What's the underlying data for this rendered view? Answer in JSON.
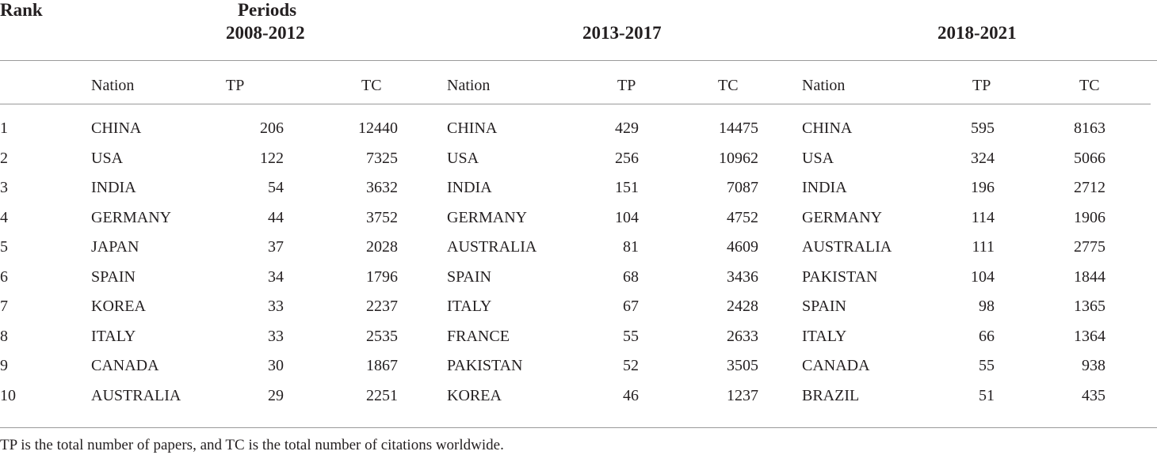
{
  "header": {
    "rank": "Rank",
    "periods": "Periods",
    "period1": "2008-2012",
    "period2": "2013-2017",
    "period3": "2018-2021"
  },
  "subheader": {
    "nation": "Nation",
    "tp": "TP",
    "tc": "TC"
  },
  "rows": [
    {
      "rank": "1",
      "p1": {
        "nation": "CHINA",
        "tp": "206",
        "tc": "12440"
      },
      "p2": {
        "nation": "CHINA",
        "tp": "429",
        "tc": "14475"
      },
      "p3": {
        "nation": "CHINA",
        "tp": "595",
        "tc": "8163"
      }
    },
    {
      "rank": "2",
      "p1": {
        "nation": "USA",
        "tp": "122",
        "tc": "7325"
      },
      "p2": {
        "nation": "USA",
        "tp": "256",
        "tc": "10962"
      },
      "p3": {
        "nation": "USA",
        "tp": "324",
        "tc": "5066"
      }
    },
    {
      "rank": "3",
      "p1": {
        "nation": "INDIA",
        "tp": "54",
        "tc": "3632"
      },
      "p2": {
        "nation": "INDIA",
        "tp": "151",
        "tc": "7087"
      },
      "p3": {
        "nation": "INDIA",
        "tp": "196",
        "tc": "2712"
      }
    },
    {
      "rank": "4",
      "p1": {
        "nation": "GERMANY",
        "tp": "44",
        "tc": "3752"
      },
      "p2": {
        "nation": "GERMANY",
        "tp": "104",
        "tc": "4752"
      },
      "p3": {
        "nation": "GERMANY",
        "tp": "114",
        "tc": "1906"
      }
    },
    {
      "rank": "5",
      "p1": {
        "nation": "JAPAN",
        "tp": "37",
        "tc": "2028"
      },
      "p2": {
        "nation": "AUSTRALIA",
        "tp": "81",
        "tc": "4609"
      },
      "p3": {
        "nation": "AUSTRALIA",
        "tp": "111",
        "tc": "2775"
      }
    },
    {
      "rank": "6",
      "p1": {
        "nation": "SPAIN",
        "tp": "34",
        "tc": "1796"
      },
      "p2": {
        "nation": "SPAIN",
        "tp": "68",
        "tc": "3436"
      },
      "p3": {
        "nation": "PAKISTAN",
        "tp": "104",
        "tc": "1844"
      }
    },
    {
      "rank": "7",
      "p1": {
        "nation": "KOREA",
        "tp": "33",
        "tc": "2237"
      },
      "p2": {
        "nation": "ITALY",
        "tp": "67",
        "tc": "2428"
      },
      "p3": {
        "nation": "SPAIN",
        "tp": "98",
        "tc": "1365"
      }
    },
    {
      "rank": "8",
      "p1": {
        "nation": "ITALY",
        "tp": "33",
        "tc": "2535"
      },
      "p2": {
        "nation": "FRANCE",
        "tp": "55",
        "tc": "2633"
      },
      "p3": {
        "nation": "ITALY",
        "tp": "66",
        "tc": "1364"
      }
    },
    {
      "rank": "9",
      "p1": {
        "nation": "CANADA",
        "tp": "30",
        "tc": "1867"
      },
      "p2": {
        "nation": "PAKISTAN",
        "tp": "52",
        "tc": "3505"
      },
      "p3": {
        "nation": "CANADA",
        "tp": "55",
        "tc": "938"
      }
    },
    {
      "rank": "10",
      "p1": {
        "nation": "AUSTRALIA",
        "tp": "29",
        "tc": "2251"
      },
      "p2": {
        "nation": "KOREA",
        "tp": "46",
        "tc": "1237"
      },
      "p3": {
        "nation": "BRAZIL",
        "tp": "51",
        "tc": "435"
      }
    }
  ],
  "footnote": "TP is the total number of papers, and TC is the total number of citations worldwide."
}
